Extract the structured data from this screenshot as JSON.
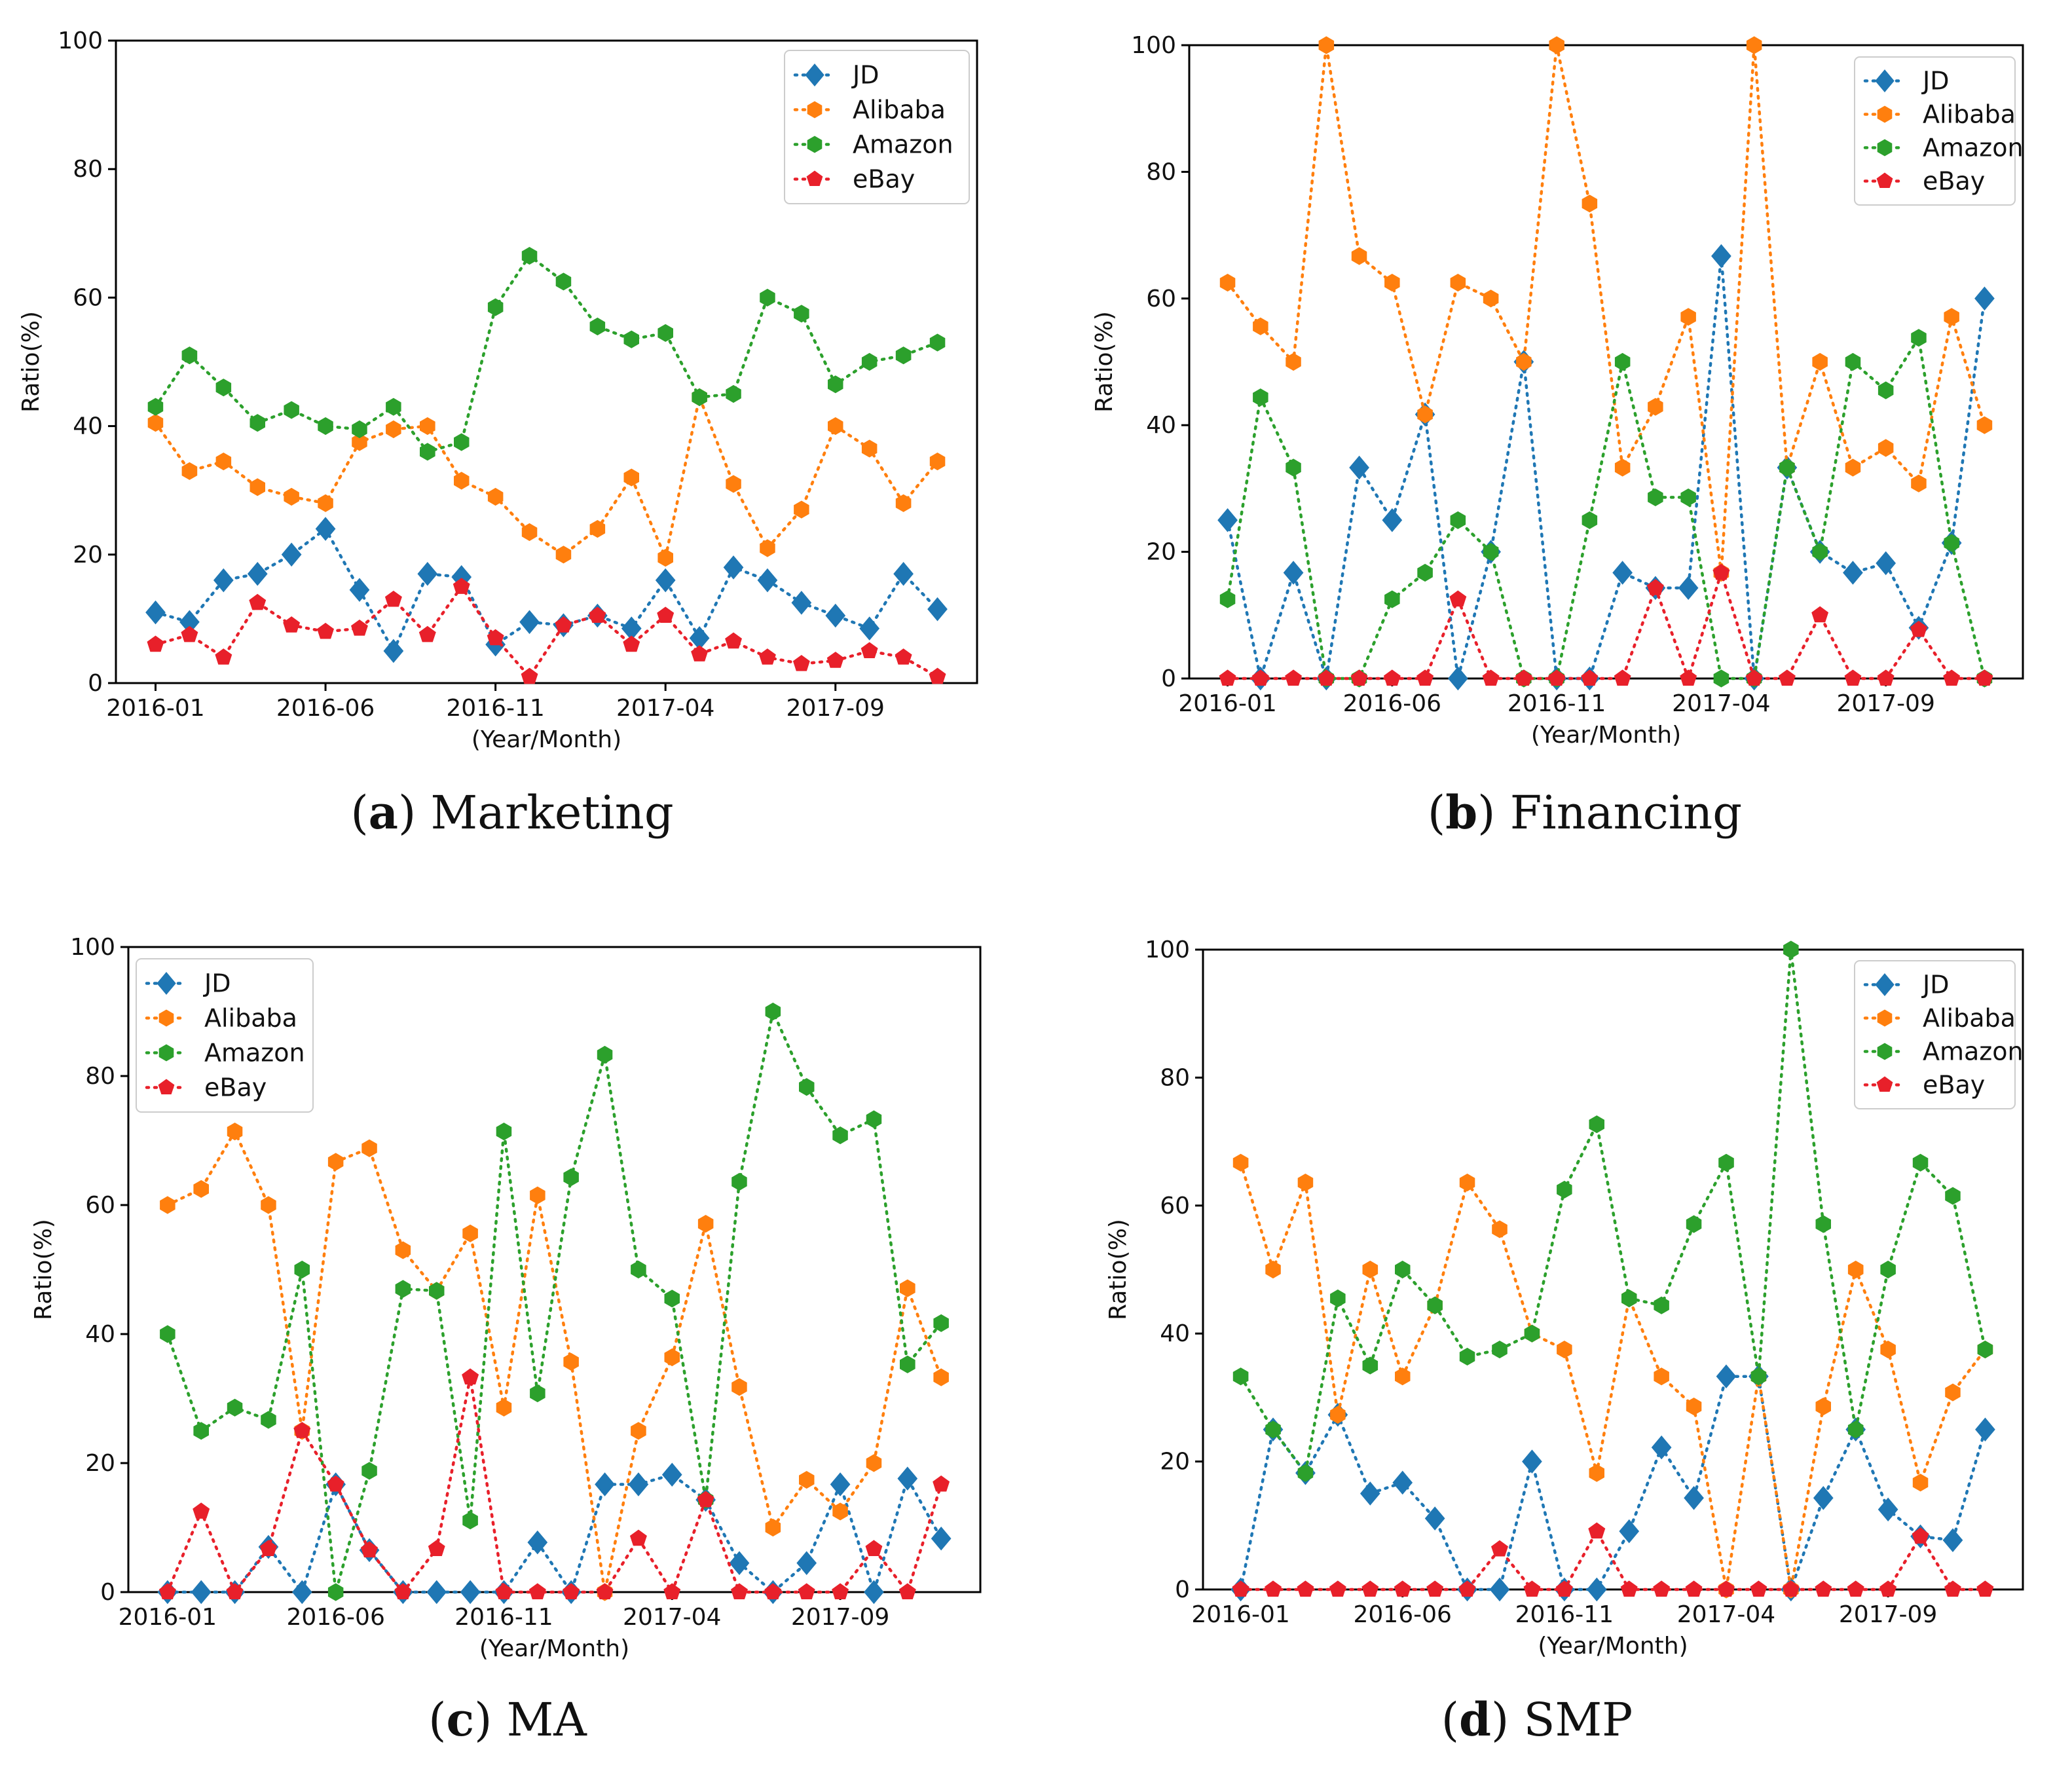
{
  "colors": {
    "JD": "#1f77b4",
    "Alibaba": "#ff7f0e",
    "Amazon": "#2ca02c",
    "eBay": "#e8202a"
  },
  "markers": {
    "JD": "diamond-icon",
    "Alibaba": "hexagon-icon",
    "Amazon": "hexagon-icon",
    "eBay": "pentagon-icon"
  },
  "chart_data": [
    {
      "type": "line",
      "id": "a",
      "caption_letter": "a",
      "caption_title": "Marketing",
      "ylabel": "Ratio(%)",
      "xlabel": "(Year/Month)",
      "ylim": [
        0,
        100
      ],
      "yticks": [
        "0",
        "20",
        "40",
        "60",
        "80",
        "100"
      ],
      "xticks": [
        "2016-01",
        "2016-06",
        "2016-11",
        "2017-04",
        "2017-09"
      ],
      "legend": "top-right",
      "x": [
        "2016-01",
        "2016-02",
        "2016-03",
        "2016-04",
        "2016-05",
        "2016-06",
        "2016-07",
        "2016-08",
        "2016-09",
        "2016-10",
        "2016-11",
        "2016-12",
        "2017-01",
        "2017-02",
        "2017-03",
        "2017-04",
        "2017-05",
        "2017-06",
        "2017-07",
        "2017-08",
        "2017-09",
        "2017-10",
        "2017-11",
        "2017-12"
      ],
      "series": [
        {
          "name": "JD",
          "values": [
            11,
            9.5,
            16,
            17,
            20,
            24,
            14.5,
            5,
            17,
            16.5,
            6,
            9.5,
            9,
            10.5,
            8.5,
            16,
            7,
            18,
            16,
            12.5,
            10.5,
            8.5,
            17,
            11.5
          ]
        },
        {
          "name": "Alibaba",
          "values": [
            40.5,
            33,
            34.5,
            30.5,
            29,
            28,
            37.5,
            39.5,
            40,
            31.5,
            29,
            23.5,
            20,
            24,
            32,
            19.5,
            44.5,
            31,
            21,
            27,
            40,
            36.5,
            28,
            34.5
          ]
        },
        {
          "name": "Amazon",
          "values": [
            43,
            51,
            46,
            40.5,
            42.5,
            40,
            39.5,
            43,
            36,
            37.5,
            58.5,
            66.5,
            62.5,
            55.5,
            53.5,
            54.5,
            44.5,
            45,
            60,
            57.5,
            46.5,
            50,
            51,
            53
          ]
        },
        {
          "name": "eBay",
          "values": [
            6,
            7.5,
            4,
            12.5,
            9,
            8,
            8.5,
            13,
            7.5,
            15,
            7,
            1,
            9,
            10.5,
            6,
            10.5,
            4.5,
            6.5,
            4,
            3,
            3.5,
            5,
            4,
            1
          ]
        }
      ]
    },
    {
      "type": "line",
      "id": "b",
      "caption_letter": "b",
      "caption_title": "Financing",
      "ylabel": "Ratio(%)",
      "xlabel": "(Year/Month)",
      "ylim": [
        0,
        100
      ],
      "yticks": [
        "0",
        "20",
        "40",
        "60",
        "80",
        "100"
      ],
      "xticks": [
        "2016-01",
        "2016-06",
        "2016-11",
        "2017-04",
        "2017-09"
      ],
      "legend": "top-right",
      "x": [
        "2016-01",
        "2016-02",
        "2016-03",
        "2016-04",
        "2016-05",
        "2016-06",
        "2016-07",
        "2016-08",
        "2016-09",
        "2016-10",
        "2016-11",
        "2016-12",
        "2017-01",
        "2017-02",
        "2017-03",
        "2017-04",
        "2017-05",
        "2017-06",
        "2017-07",
        "2017-08",
        "2017-09",
        "2017-10",
        "2017-11",
        "2017-12"
      ],
      "series": [
        {
          "name": "JD",
          "values": [
            25,
            0,
            16.7,
            0,
            33.3,
            25,
            41.7,
            0,
            20,
            50,
            0,
            0,
            16.7,
            14.3,
            14.3,
            66.7,
            0,
            33.3,
            20,
            16.7,
            18.2,
            8,
            21.4,
            60
          ]
        },
        {
          "name": "Alibaba",
          "values": [
            62.5,
            55.6,
            50,
            100,
            66.7,
            62.5,
            41.7,
            62.5,
            60,
            50,
            100,
            75,
            33.3,
            42.9,
            57.1,
            16.7,
            100,
            33.3,
            50,
            33.3,
            36.4,
            30.8,
            57.1,
            40
          ]
        },
        {
          "name": "Amazon",
          "values": [
            12.5,
            44.4,
            33.3,
            0,
            0,
            12.5,
            16.7,
            25,
            20,
            0,
            0,
            25,
            50,
            28.6,
            28.6,
            0,
            0,
            33.3,
            20,
            50,
            45.5,
            53.8,
            21.4,
            0
          ]
        },
        {
          "name": "eBay",
          "values": [
            0,
            0,
            0,
            0,
            0,
            0,
            0,
            12.5,
            0,
            0,
            0,
            0,
            0,
            14.3,
            0,
            16.7,
            0,
            0,
            10,
            0,
            0,
            7.7,
            0,
            0
          ]
        }
      ]
    },
    {
      "type": "line",
      "id": "c",
      "caption_letter": "c",
      "caption_title": "MA",
      "ylabel": "Ratio(%)",
      "xlabel": "(Year/Month)",
      "ylim": [
        0,
        100
      ],
      "yticks": [
        "0",
        "20",
        "40",
        "60",
        "80",
        "100"
      ],
      "xticks": [
        "2016-01",
        "2016-06",
        "2016-11",
        "2017-04",
        "2017-09"
      ],
      "legend": "top-left",
      "x": [
        "2016-01",
        "2016-02",
        "2016-03",
        "2016-04",
        "2016-05",
        "2016-06",
        "2016-07",
        "2016-08",
        "2016-09",
        "2016-10",
        "2016-11",
        "2016-12",
        "2017-01",
        "2017-02",
        "2017-03",
        "2017-04",
        "2017-05",
        "2017-06",
        "2017-07",
        "2017-08",
        "2017-09",
        "2017-10",
        "2017-11",
        "2017-12"
      ],
      "series": [
        {
          "name": "JD",
          "values": [
            0,
            0,
            0,
            7,
            0,
            16.7,
            6.5,
            0,
            0,
            0,
            0,
            7.7,
            0,
            16.7,
            16.7,
            18.2,
            14.3,
            4.5,
            0,
            4.5,
            16.7,
            0,
            17.6,
            8.3
          ]
        },
        {
          "name": "Alibaba",
          "values": [
            60,
            62.5,
            71.4,
            60,
            25,
            66.7,
            68.8,
            53,
            46.7,
            55.6,
            28.6,
            61.5,
            35.7,
            0,
            25,
            36.4,
            57.1,
            31.8,
            10,
            17.4,
            12.5,
            20,
            47.1,
            33.3
          ]
        },
        {
          "name": "Amazon",
          "values": [
            40,
            25,
            28.6,
            26.7,
            50,
            0,
            18.8,
            47,
            46.7,
            11.1,
            71.4,
            30.8,
            64.3,
            83.3,
            50,
            45.5,
            14.3,
            63.6,
            90,
            78.3,
            70.8,
            73.3,
            35.3,
            41.7
          ]
        },
        {
          "name": "eBay",
          "values": [
            0,
            12.5,
            0,
            6.7,
            25,
            16.7,
            6.5,
            0,
            6.7,
            33.3,
            0,
            0,
            0,
            0,
            8.3,
            0,
            14.3,
            0,
            0,
            0,
            0,
            6.7,
            0,
            16.7
          ]
        }
      ]
    },
    {
      "type": "line",
      "id": "d",
      "caption_letter": "d",
      "caption_title": "SMP",
      "ylabel": "Ratio(%)",
      "xlabel": "(Year/Month)",
      "ylim": [
        0,
        100
      ],
      "yticks": [
        "0",
        "20",
        "40",
        "60",
        "80",
        "100"
      ],
      "xticks": [
        "2016-01",
        "2016-06",
        "2016-11",
        "2017-04",
        "2017-09"
      ],
      "legend": "top-right",
      "x": [
        "2016-01",
        "2016-02",
        "2016-03",
        "2016-04",
        "2016-05",
        "2016-06",
        "2016-07",
        "2016-08",
        "2016-09",
        "2016-10",
        "2016-11",
        "2016-12",
        "2017-01",
        "2017-02",
        "2017-03",
        "2017-04",
        "2017-05",
        "2017-06",
        "2017-07",
        "2017-08",
        "2017-09",
        "2017-10",
        "2017-11",
        "2017-12"
      ],
      "series": [
        {
          "name": "JD",
          "values": [
            0,
            25,
            18.2,
            27.3,
            15,
            16.7,
            11.1,
            0,
            0,
            20,
            0,
            0,
            9.1,
            22.2,
            14.3,
            33.3,
            33.3,
            0,
            14.3,
            25,
            12.5,
            8.3,
            7.7,
            25
          ]
        },
        {
          "name": "Alibaba",
          "values": [
            66.7,
            50,
            63.6,
            27.3,
            50,
            33.3,
            44.4,
            63.6,
            56.3,
            40,
            37.5,
            18.2,
            45.5,
            33.3,
            28.6,
            0,
            33.3,
            0,
            28.6,
            50,
            37.5,
            16.7,
            30.8,
            37.5
          ]
        },
        {
          "name": "Amazon",
          "values": [
            33.3,
            25,
            18.2,
            45.5,
            35,
            50,
            44.4,
            36.4,
            37.5,
            40,
            62.5,
            72.7,
            45.5,
            44.4,
            57.1,
            66.7,
            33.3,
            100,
            57.1,
            25,
            50,
            66.7,
            61.5,
            37.5
          ]
        },
        {
          "name": "eBay",
          "values": [
            0,
            0,
            0,
            0,
            0,
            0,
            0,
            0,
            6.3,
            0,
            0,
            9.1,
            0,
            0,
            0,
            0,
            0,
            0,
            0,
            0,
            0,
            8.3,
            0,
            0
          ]
        }
      ]
    }
  ]
}
